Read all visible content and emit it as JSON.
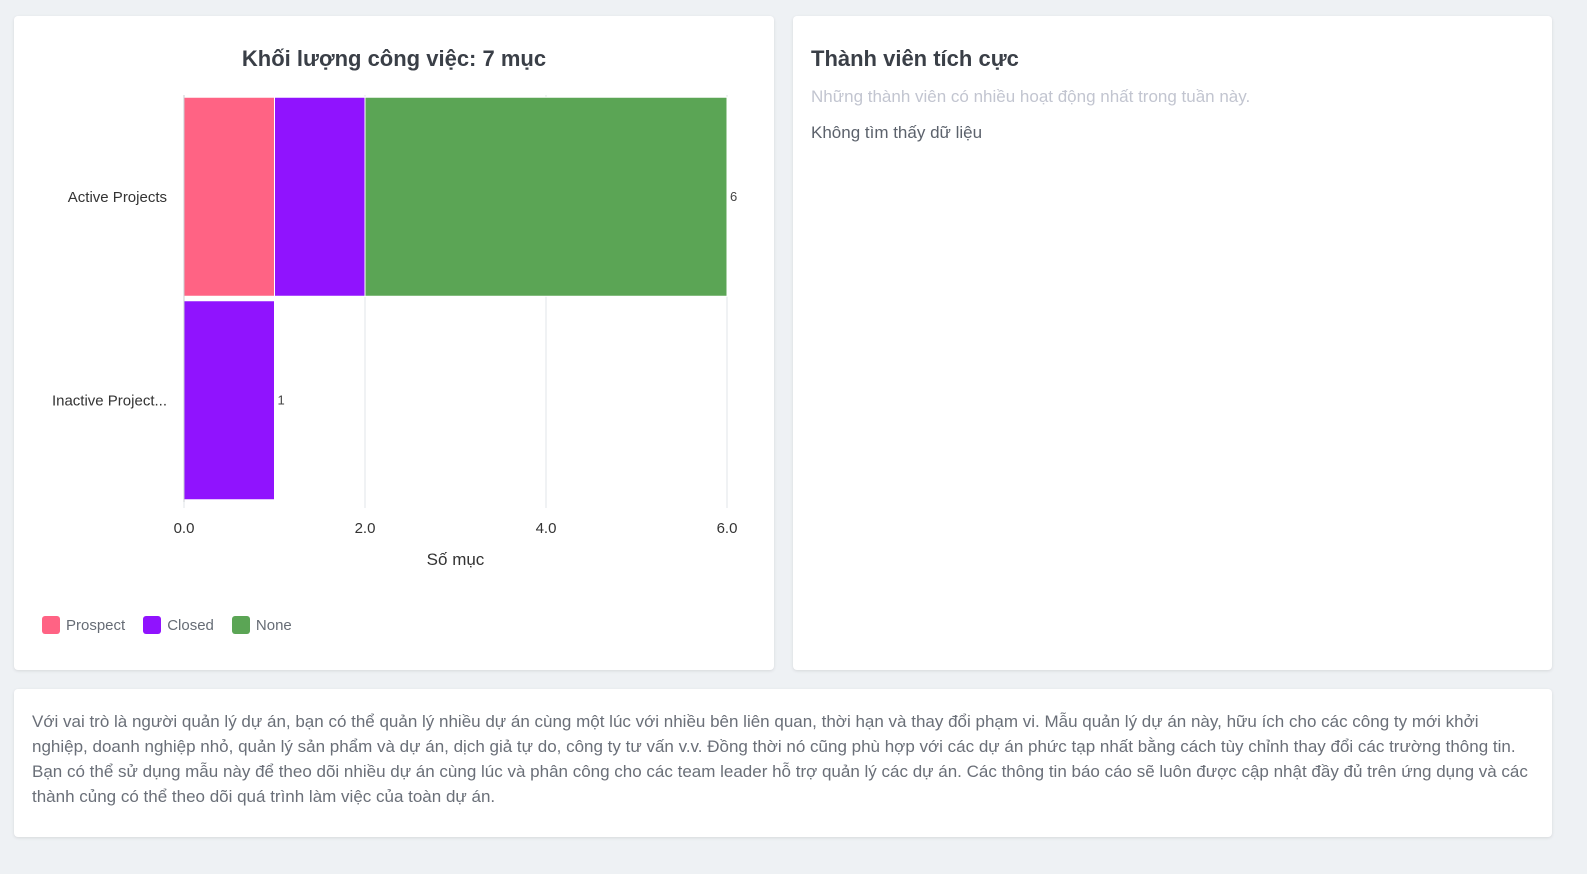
{
  "chart_card": {
    "title": "Khối lượng công việc: 7 mục"
  },
  "chart_data": {
    "type": "bar",
    "orientation": "horizontal",
    "stacked": true,
    "title": "Khối lượng công việc: 7 mục",
    "categories": [
      "Active Projects",
      "Inactive Project..."
    ],
    "series": [
      {
        "name": "Prospect",
        "color": "#ff6384",
        "values": [
          1,
          0
        ]
      },
      {
        "name": "Closed",
        "color": "#9013fe",
        "values": [
          1,
          1
        ]
      },
      {
        "name": "None",
        "color": "#5ba555",
        "values": [
          4,
          0
        ]
      }
    ],
    "totals": [
      6,
      1
    ],
    "total_labels": [
      "6",
      "1"
    ],
    "xlabel": "Số mục",
    "ylabel": "",
    "xlim": [
      0,
      6
    ],
    "xticks": [
      0,
      2,
      4,
      6
    ],
    "xtick_labels": [
      "0.0",
      "2.0",
      "4.0",
      "6.0"
    ],
    "grid": true,
    "legend_position": "bottom-left"
  },
  "members_card": {
    "title": "Thành viên tích cực",
    "subtitle": "Những thành viên có nhiều hoạt động nhất trong tuần này.",
    "empty_text": "Không tìm thấy dữ liệu"
  },
  "description": {
    "text": "Với vai trò là người quản lý dự án, bạn có thể quản lý nhiều dự án cùng một lúc với nhiều bên liên quan, thời hạn và thay đổi phạm vi. Mẫu quản lý dự án này, hữu ích cho các công ty mới khởi nghiệp, doanh nghiệp nhỏ, quản lý sản phẩm và dự án, dịch giả tự do, công ty tư vấn v.v. Đồng thời nó cũng phù hợp với các dự án phức tạp nhất bằng cách tùy chỉnh thay đổi các trường thông tin. Bạn có thể sử dụng mẫu này để theo dõi nhiều dự án cùng lúc và phân công cho các team leader hỗ trợ quản lý các dự án. Các thông tin báo cáo sẽ luôn được cập nhật đầy đủ trên ứng dụng và các thành củng có thể theo dõi quá trình làm việc của toàn dự án."
  }
}
